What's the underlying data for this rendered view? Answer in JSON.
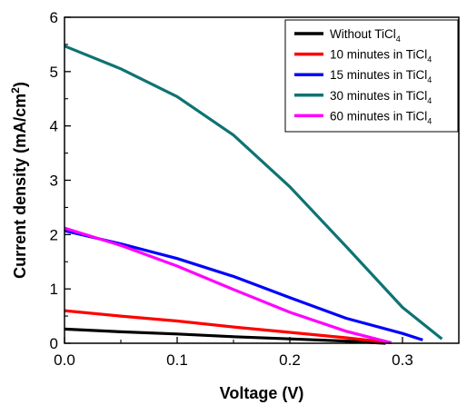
{
  "chart_data": {
    "type": "line",
    "xlabel": "Voltage (V)",
    "ylabel": "Current density (mA/cm²)",
    "ylabel_parts": {
      "main": "Current density (mA/cm",
      "sup": "2",
      "tail": ")"
    },
    "xlim": [
      0.0,
      0.35
    ],
    "ylim": [
      0,
      6
    ],
    "x_ticks": [
      0.0,
      0.1,
      0.2,
      0.3
    ],
    "x_tick_labels": [
      "0.0",
      "0.1",
      "0.2",
      "0.3"
    ],
    "y_ticks": [
      0,
      1,
      2,
      3,
      4,
      5,
      6
    ],
    "y_tick_labels": [
      "0",
      "1",
      "2",
      "3",
      "4",
      "5",
      "6"
    ],
    "grid": false,
    "legend_position": "top-right",
    "series": [
      {
        "name": "Without TiCl4",
        "label_main": "Without TiCl",
        "label_sub": "4",
        "color": "#000000",
        "points": [
          [
            0.0,
            0.26
          ],
          [
            0.05,
            0.21
          ],
          [
            0.1,
            0.17
          ],
          [
            0.15,
            0.12
          ],
          [
            0.2,
            0.08
          ],
          [
            0.25,
            0.04
          ],
          [
            0.285,
            0.0
          ]
        ]
      },
      {
        "name": "10 minutes in TiCl4",
        "label_main": "10 minutes in TiCl",
        "label_sub": "4",
        "color": "#ff0000",
        "points": [
          [
            0.0,
            0.6
          ],
          [
            0.05,
            0.5
          ],
          [
            0.1,
            0.41
          ],
          [
            0.15,
            0.3
          ],
          [
            0.2,
            0.2
          ],
          [
            0.25,
            0.1
          ],
          [
            0.29,
            0.01
          ]
        ]
      },
      {
        "name": "15 minutes in TiCl4",
        "label_main": "15 minutes in TiCl",
        "label_sub": "4",
        "color": "#0000ff",
        "points": [
          [
            0.0,
            2.07
          ],
          [
            0.05,
            1.83
          ],
          [
            0.1,
            1.56
          ],
          [
            0.15,
            1.23
          ],
          [
            0.2,
            0.84
          ],
          [
            0.25,
            0.46
          ],
          [
            0.3,
            0.18
          ],
          [
            0.318,
            0.06
          ]
        ]
      },
      {
        "name": "30 minutes in TiCl4",
        "label_main": "30 minutes in TiCl",
        "label_sub": "4",
        "color": "#0e7373",
        "points": [
          [
            0.0,
            5.47
          ],
          [
            0.05,
            5.05
          ],
          [
            0.1,
            4.54
          ],
          [
            0.15,
            3.83
          ],
          [
            0.2,
            2.88
          ],
          [
            0.25,
            1.78
          ],
          [
            0.3,
            0.66
          ],
          [
            0.335,
            0.08
          ]
        ]
      },
      {
        "name": "60 minutes in TiCl4",
        "label_main": "60 minutes in TiCl",
        "label_sub": "4",
        "color": "#ff00ff",
        "points": [
          [
            0.0,
            2.12
          ],
          [
            0.05,
            1.8
          ],
          [
            0.1,
            1.42
          ],
          [
            0.15,
            0.99
          ],
          [
            0.2,
            0.57
          ],
          [
            0.25,
            0.22
          ],
          [
            0.29,
            0.01
          ]
        ]
      }
    ]
  }
}
